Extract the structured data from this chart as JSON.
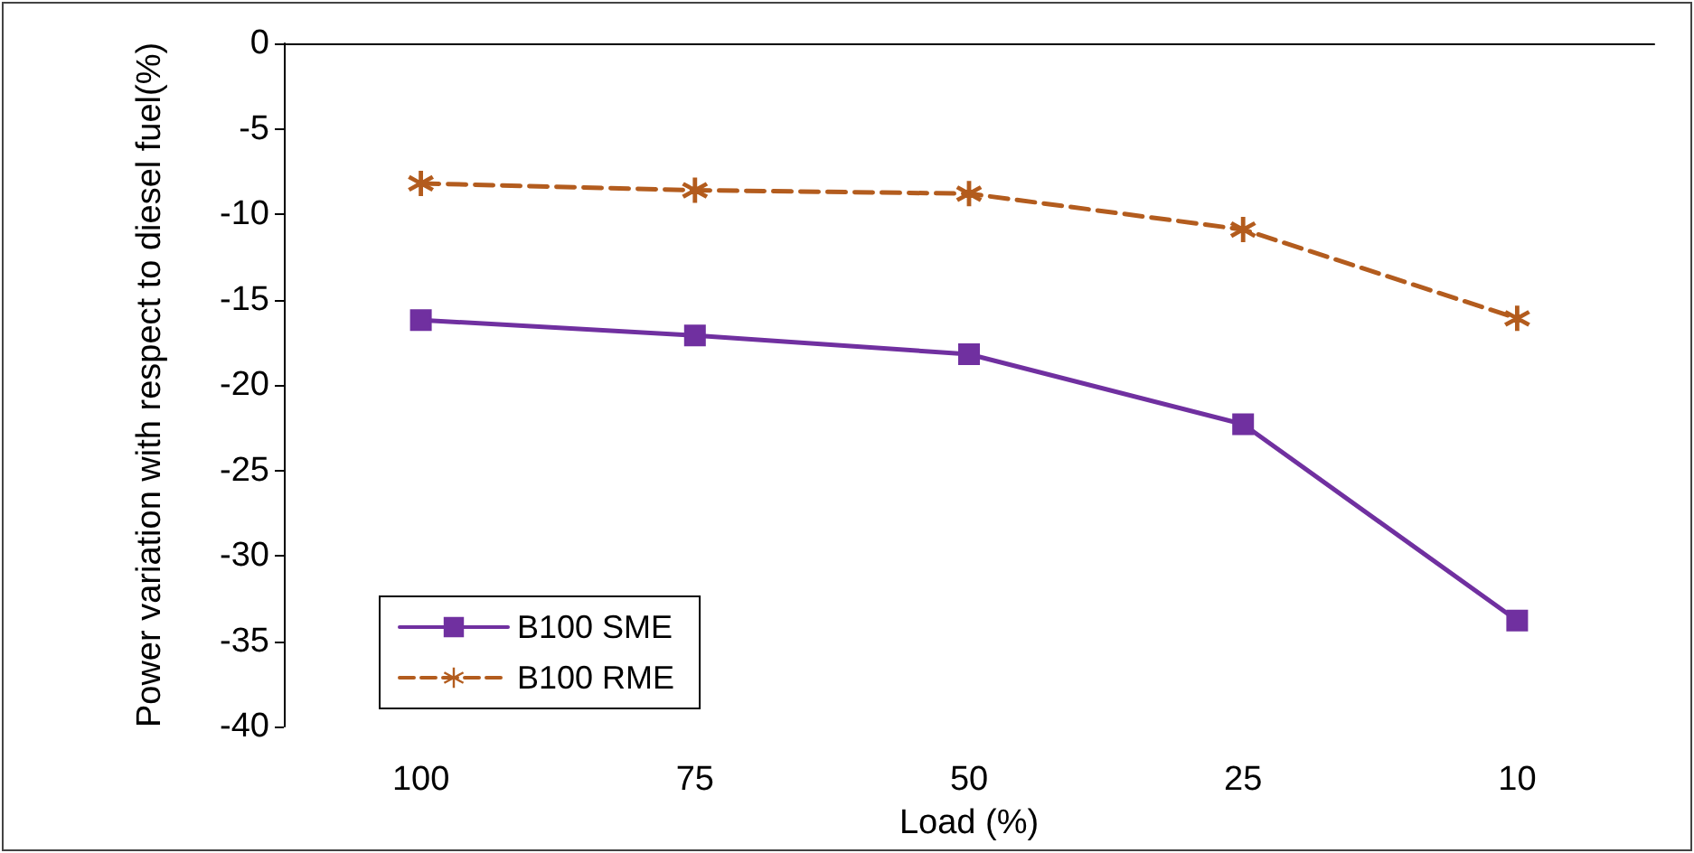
{
  "chart_data": {
    "type": "line",
    "xlabel": "Load (%)",
    "ylabel": "Power variation with respect to diesel fuel(%)",
    "categories": [
      "100",
      "75",
      "50",
      "25",
      "10"
    ],
    "series": [
      {
        "name": "B100 SME",
        "color": "#7030a0",
        "marker": "square",
        "line_style": "solid",
        "values": [
          -16.2,
          -17.1,
          -18.2,
          -22.3,
          -33.8
        ]
      },
      {
        "name": "B100 RME",
        "color": "#b35c1e",
        "marker": "star",
        "line_style": "dashed",
        "values": [
          -8.2,
          -8.6,
          -8.8,
          -10.9,
          -16.1
        ]
      }
    ],
    "ylim": [
      -40,
      0
    ],
    "yticks": [
      -40,
      -35,
      -30,
      -25,
      -20,
      -15,
      -10,
      -5,
      0
    ],
    "grid": false,
    "legend": "bottom left"
  }
}
